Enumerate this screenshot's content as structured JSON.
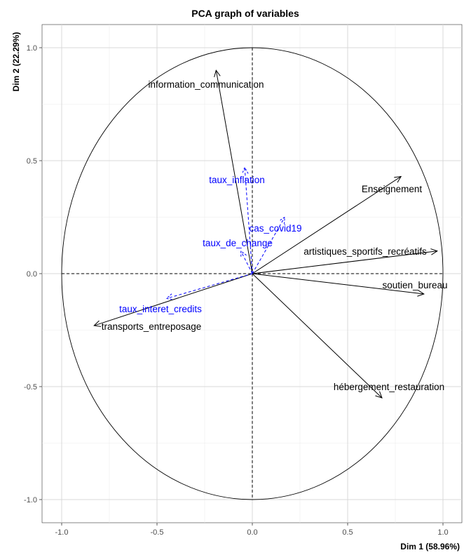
{
  "chart_data": {
    "type": "scatter",
    "subtype": "pca-correlation-circle",
    "title": "PCA graph of variables",
    "xlabel": "Dim 1 (58.96%)",
    "ylabel": "Dim 2 (22.29%)",
    "xlim": [
      -1.05,
      1.05
    ],
    "ylim": [
      -1.08,
      1.08
    ],
    "xticks": [
      -1.0,
      -0.5,
      0.0,
      0.5,
      1.0
    ],
    "yticks": [
      -1.0,
      -0.5,
      0.0,
      0.5,
      1.0
    ],
    "xtick_labels": [
      "-1.0",
      "-0.5",
      "0.0",
      "0.5",
      "1.0"
    ],
    "ytick_labels": [
      "-1.0",
      "-0.5",
      "0.0",
      "0.5",
      "1.0"
    ],
    "grid": true,
    "active_color": "#000000",
    "supplementary_color": "#0000FF",
    "active_variables": [
      {
        "name": "information_communication",
        "x": -0.19,
        "y": 0.9
      },
      {
        "name": "Enseignement",
        "x": 0.78,
        "y": 0.43
      },
      {
        "name": "artistiques_sportifs_recréatifs",
        "x": 0.97,
        "y": 0.1
      },
      {
        "name": "soutien_bureau",
        "x": 0.9,
        "y": -0.09
      },
      {
        "name": "hébergement_restauration",
        "x": 0.68,
        "y": -0.55
      },
      {
        "name": "transports_entreposage",
        "x": -0.83,
        "y": -0.23
      }
    ],
    "supplementary_variables": [
      {
        "name": "taux_inflation",
        "x": -0.04,
        "y": 0.47
      },
      {
        "name": "cas_covid19",
        "x": 0.17,
        "y": 0.25
      },
      {
        "name": "taux_de_change",
        "x": -0.06,
        "y": 0.1
      },
      {
        "name": "taux_interet_credits",
        "x": -0.45,
        "y": -0.11
      }
    ]
  }
}
